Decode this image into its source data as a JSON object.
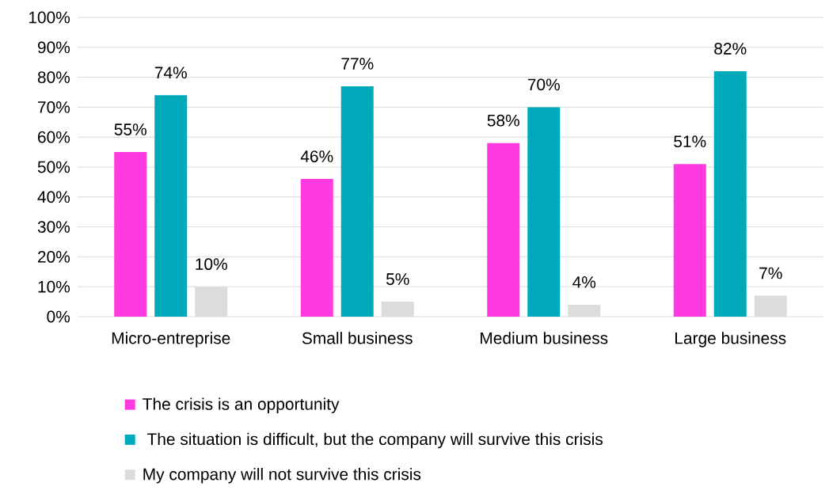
{
  "chart_data": {
    "type": "bar",
    "categories": [
      "Micro-entreprise",
      "Small business",
      "Medium business",
      "Large business"
    ],
    "series": [
      {
        "name": "The crisis is an opportunity",
        "color": "#ff3ae0",
        "values": [
          55,
          46,
          58,
          51
        ],
        "value_labels": [
          "55%",
          "46%",
          "58%",
          "51%"
        ]
      },
      {
        "name": " The situation is difficult, but the company will survive this crisis",
        "color": "#00aabb",
        "values": [
          74,
          77,
          70,
          82
        ],
        "value_labels": [
          "74%",
          "77%",
          "70%",
          "82%"
        ]
      },
      {
        "name": "My company will not survive this crisis",
        "color": "#dcdcdc",
        "values": [
          10,
          5,
          4,
          7
        ],
        "value_labels": [
          "10%",
          "5%",
          "4%",
          "7%"
        ]
      }
    ],
    "ylim": [
      0,
      100
    ],
    "yticks": [
      {
        "value": 0,
        "label": "0%"
      },
      {
        "value": 10,
        "label": "10%"
      },
      {
        "value": 20,
        "label": "20%"
      },
      {
        "value": 30,
        "label": "30%"
      },
      {
        "value": 40,
        "label": "40%"
      },
      {
        "value": 50,
        "label": "50%"
      },
      {
        "value": 60,
        "label": "60%"
      },
      {
        "value": 70,
        "label": "70%"
      },
      {
        "value": 80,
        "label": "80%"
      },
      {
        "value": 90,
        "label": "90%"
      },
      {
        "value": 100,
        "label": "100%"
      }
    ],
    "grid": "y",
    "legend": "bottom"
  }
}
